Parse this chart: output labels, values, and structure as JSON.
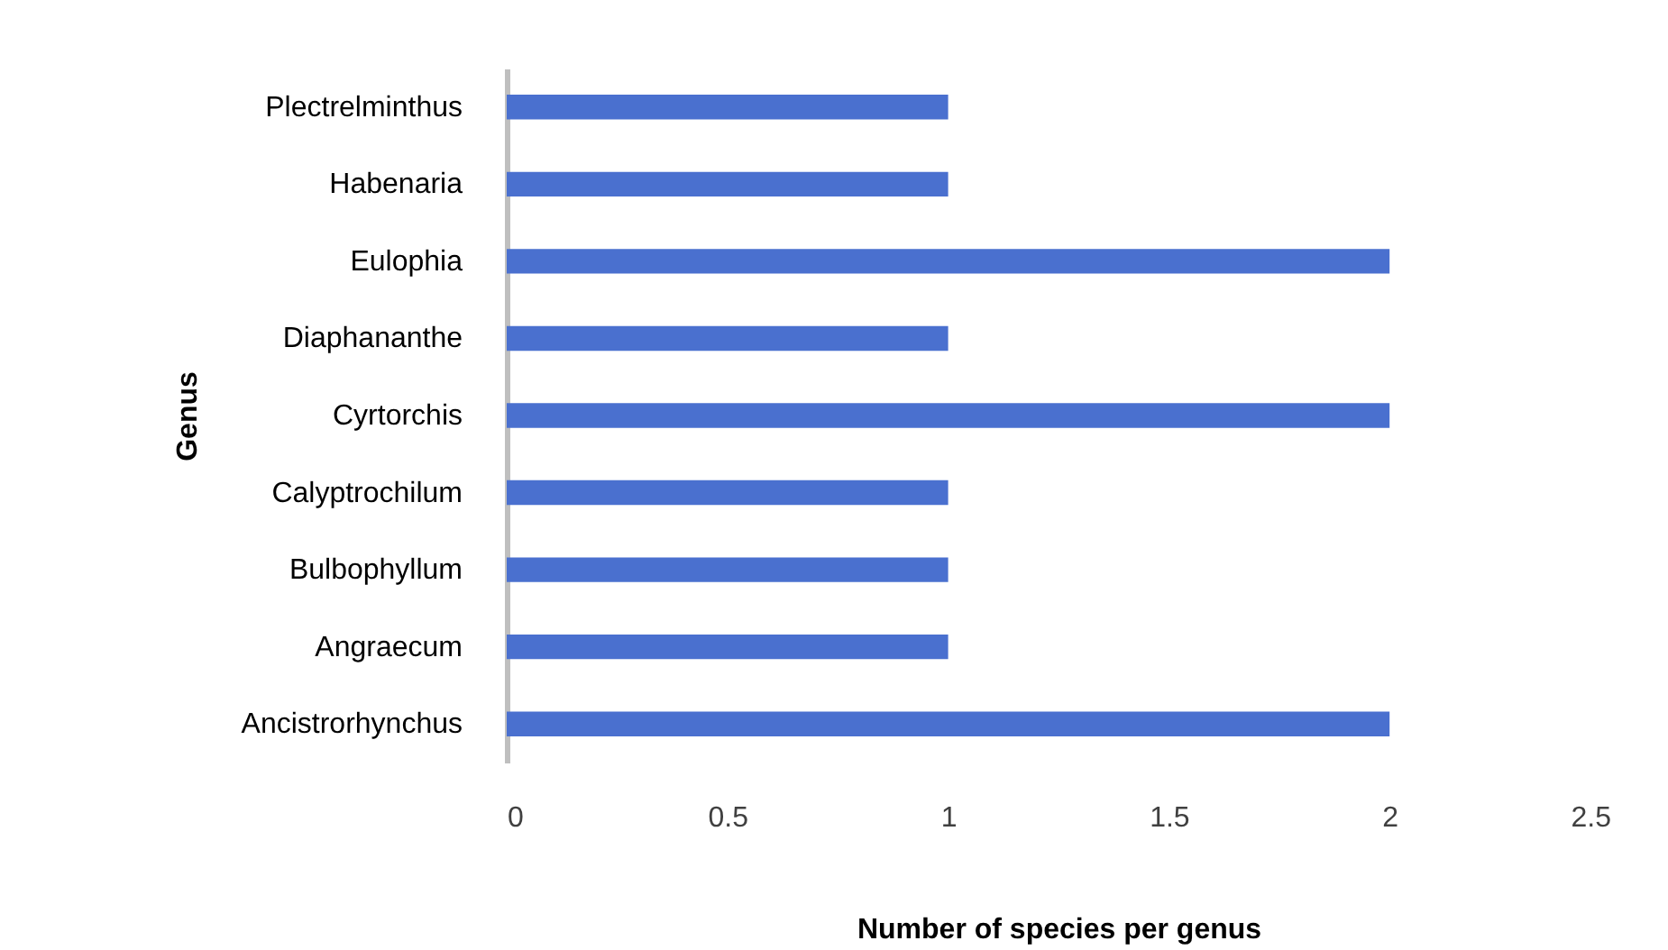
{
  "chart_data": {
    "type": "bar",
    "orientation": "horizontal",
    "xlabel": "Number of species per genus",
    "ylabel": "Genus",
    "categories": [
      "Plectrelminthus",
      "Habenaria",
      "Eulophia",
      "Diaphananthe",
      "Cyrtorchis",
      "Calyptrochilum",
      "Bulbophyllum",
      "Angraecum",
      "Ancistrorhynchus"
    ],
    "values": [
      1,
      1,
      2,
      1,
      2,
      1,
      1,
      1,
      2
    ],
    "color": "#4a70cf",
    "xlim": [
      0,
      2.5
    ],
    "xticks": [
      0,
      0.5,
      1,
      1.5,
      2,
      2.5
    ],
    "grid": false
  }
}
